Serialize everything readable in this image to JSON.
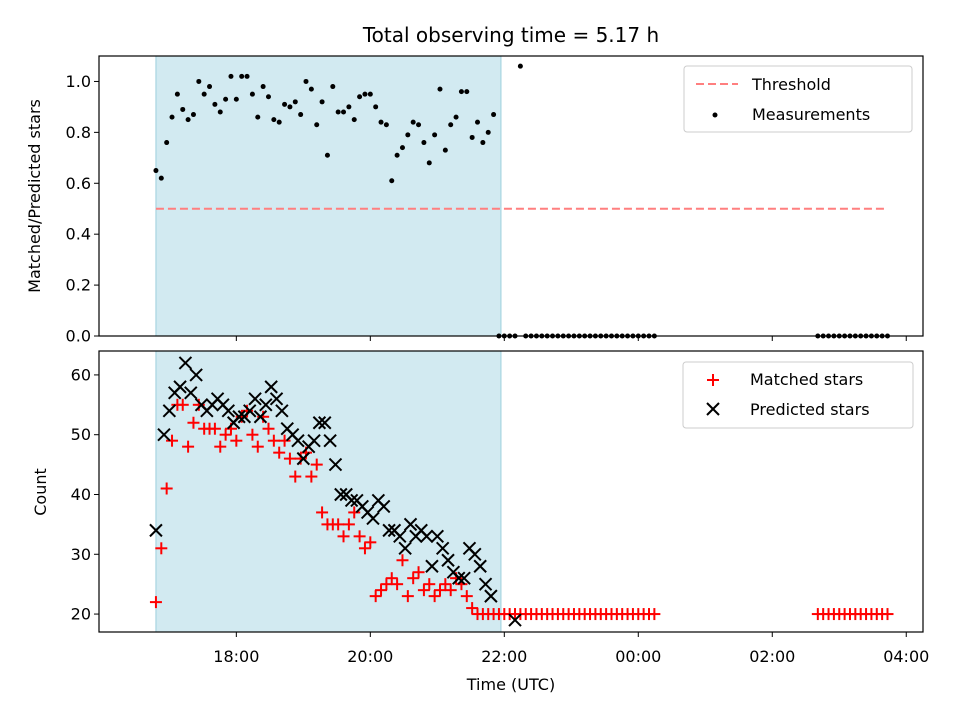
{
  "chart_data": [
    {
      "type": "scatter",
      "title": "Total observing time = 5.17 h",
      "xlabel": "",
      "ylabel": "Matched/Predicted stars",
      "x_unit": "hours after 00:00 UTC of observing start day",
      "xlim": [
        15.95,
        28.25
      ],
      "ylim": [
        0.0,
        1.1
      ],
      "yticks": [
        0.0,
        0.2,
        0.4,
        0.6,
        0.8,
        1.0
      ],
      "grid": false,
      "legend": "top-right",
      "highlight_span": [
        16.8,
        21.95
      ],
      "threshold": {
        "name": "Threshold",
        "value": 0.5,
        "x_range": [
          16.8,
          27.7
        ],
        "color": "#ff7f7f"
      },
      "series": [
        {
          "name": "Measurements",
          "color": "#000000",
          "x": [
            16.8,
            16.88,
            16.96,
            17.04,
            17.12,
            17.2,
            17.28,
            17.36,
            17.44,
            17.52,
            17.6,
            17.68,
            17.76,
            17.84,
            17.92,
            18.0,
            18.08,
            18.16,
            18.24,
            18.32,
            18.4,
            18.48,
            18.56,
            18.64,
            18.72,
            18.8,
            18.88,
            18.96,
            19.04,
            19.12,
            19.2,
            19.28,
            19.36,
            19.44,
            19.52,
            19.6,
            19.68,
            19.76,
            19.84,
            19.92,
            20.0,
            20.08,
            20.16,
            20.24,
            20.32,
            20.4,
            20.48,
            20.56,
            20.64,
            20.72,
            20.8,
            20.88,
            20.96,
            21.04,
            21.12,
            21.2,
            21.28,
            21.36,
            21.44,
            21.52,
            21.6,
            21.68,
            21.76,
            21.84,
            21.92,
            22.0,
            22.08,
            22.16,
            22.24,
            22.32,
            22.4,
            22.48,
            22.56,
            22.64,
            22.72,
            22.8,
            22.88,
            22.96,
            23.04,
            23.12,
            23.2,
            23.28,
            23.36,
            23.44,
            23.52,
            23.6,
            23.68,
            23.76,
            23.84,
            23.92,
            24.0,
            24.08,
            24.16,
            24.24,
            26.68,
            26.76,
            26.84,
            26.92,
            27.0,
            27.08,
            27.16,
            27.24,
            27.32,
            27.4,
            27.48,
            27.56,
            27.64,
            27.72
          ],
          "y": [
            0.65,
            0.62,
            0.76,
            0.86,
            0.95,
            0.89,
            0.85,
            0.87,
            1.0,
            0.95,
            0.98,
            0.91,
            0.88,
            0.93,
            1.02,
            0.93,
            1.02,
            1.02,
            0.95,
            0.86,
            0.98,
            0.94,
            0.85,
            0.84,
            0.91,
            0.9,
            0.92,
            0.87,
            1.0,
            0.97,
            0.83,
            0.92,
            0.71,
            0.98,
            0.88,
            0.88,
            0.9,
            0.85,
            0.94,
            0.95,
            0.95,
            0.9,
            0.84,
            0.83,
            0.61,
            0.71,
            0.74,
            0.79,
            0.84,
            0.83,
            0.76,
            0.68,
            0.79,
            0.97,
            0.73,
            0.83,
            0.86,
            0.96,
            0.96,
            0.78,
            0.84,
            0.76,
            0.8,
            0.87,
            0.0,
            0.0,
            0.0,
            0.0,
            1.06,
            0.0,
            0.0,
            0.0,
            0.0,
            0.0,
            0.0,
            0.0,
            0.0,
            0.0,
            0.0,
            0.0,
            0.0,
            0.0,
            0.0,
            0.0,
            0.0,
            0.0,
            0.0,
            0.0,
            0.0,
            0.0,
            0.0,
            0.0,
            0.0,
            0.0,
            0.0,
            0.0,
            0.0,
            0.0,
            0.0,
            0.0,
            0.0,
            0.0,
            0.0,
            0.0,
            0.0,
            0.0,
            0.0,
            0.0
          ]
        }
      ]
    },
    {
      "type": "scatter",
      "title": "",
      "xlabel": "Time (UTC)",
      "ylabel": "Count",
      "x_unit": "hours after 00:00 UTC of observing start day",
      "xlim": [
        15.95,
        28.25
      ],
      "ylim": [
        17,
        64
      ],
      "xticks": [
        18,
        20,
        22,
        24,
        26,
        28
      ],
      "xticklabels": [
        "18:00",
        "20:00",
        "22:00",
        "00:00",
        "02:00",
        "04:00"
      ],
      "yticks": [
        20,
        30,
        40,
        50,
        60
      ],
      "grid": false,
      "legend": "top-right",
      "highlight_span": [
        16.8,
        21.95
      ],
      "series": [
        {
          "name": "Matched stars",
          "marker": "plus",
          "color": "#ff0000",
          "x": [
            16.8,
            16.88,
            16.96,
            17.04,
            17.12,
            17.2,
            17.28,
            17.36,
            17.44,
            17.52,
            17.6,
            17.68,
            17.76,
            17.84,
            17.92,
            18.0,
            18.08,
            18.16,
            18.24,
            18.32,
            18.4,
            18.48,
            18.56,
            18.64,
            18.72,
            18.8,
            18.88,
            18.96,
            19.04,
            19.12,
            19.2,
            19.28,
            19.36,
            19.44,
            19.52,
            19.6,
            19.68,
            19.76,
            19.84,
            19.92,
            20.0,
            20.08,
            20.16,
            20.24,
            20.32,
            20.4,
            20.48,
            20.56,
            20.64,
            20.72,
            20.8,
            20.88,
            20.96,
            21.04,
            21.12,
            21.2,
            21.28,
            21.36,
            21.44,
            21.52,
            21.6,
            21.68,
            21.76,
            21.84,
            21.92,
            22.0,
            22.08,
            22.16,
            22.24,
            22.32,
            22.4,
            22.48,
            22.56,
            22.64,
            22.72,
            22.8,
            22.88,
            22.96,
            23.04,
            23.12,
            23.2,
            23.28,
            23.36,
            23.44,
            23.52,
            23.6,
            23.68,
            23.76,
            23.84,
            23.92,
            24.0,
            24.08,
            24.16,
            24.24,
            26.68,
            26.76,
            26.84,
            26.92,
            27.0,
            27.08,
            27.16,
            27.24,
            27.32,
            27.4,
            27.48,
            27.56,
            27.64,
            27.72
          ],
          "y": [
            22,
            31,
            41,
            49,
            55,
            55,
            48,
            52,
            55,
            51,
            51,
            51,
            48,
            50,
            51,
            49,
            53,
            54,
            50,
            48,
            53,
            51,
            49,
            47,
            49,
            46,
            43,
            46,
            47,
            43,
            45,
            37,
            35,
            35,
            35,
            33,
            35,
            37,
            33,
            31,
            32,
            23,
            24,
            25,
            26,
            25,
            29,
            23,
            26,
            27,
            24,
            25,
            23,
            24,
            25,
            24,
            26,
            25,
            23,
            21,
            20,
            20,
            20,
            20,
            20,
            20,
            20,
            20,
            20,
            20,
            20,
            20,
            20,
            20,
            20,
            20,
            20,
            20,
            20,
            20,
            20,
            20,
            20,
            20,
            20,
            20,
            20,
            20,
            20,
            20,
            20,
            20,
            20,
            20,
            20,
            20,
            20,
            20,
            20,
            20,
            20,
            20,
            20,
            20,
            20,
            20,
            20,
            20
          ]
        },
        {
          "name": "Predicted stars",
          "marker": "x",
          "color": "#000000",
          "x": [
            16.8,
            16.92,
            17.0,
            17.08,
            17.16,
            17.24,
            17.32,
            17.4,
            17.48,
            17.56,
            17.64,
            17.72,
            17.8,
            17.88,
            17.96,
            18.04,
            18.12,
            18.2,
            18.28,
            18.36,
            18.44,
            18.52,
            18.6,
            18.68,
            18.76,
            18.84,
            18.92,
            19.0,
            19.08,
            19.16,
            19.24,
            19.32,
            19.4,
            19.48,
            19.56,
            19.64,
            19.72,
            19.8,
            19.88,
            19.96,
            20.04,
            20.12,
            20.2,
            20.28,
            20.36,
            20.44,
            20.52,
            20.6,
            20.68,
            20.76,
            20.84,
            20.92,
            21.0,
            21.08,
            21.16,
            21.24,
            21.32,
            21.4,
            21.48,
            21.56,
            21.64,
            21.72,
            21.8,
            22.16
          ],
          "y": [
            34,
            50,
            54,
            57,
            58,
            62,
            57,
            60,
            55,
            54,
            55,
            56,
            55,
            54,
            52,
            53,
            53,
            54,
            56,
            53,
            55,
            58,
            56,
            54,
            51,
            50,
            49,
            46,
            48,
            49,
            52,
            52,
            49,
            45,
            40,
            40,
            39,
            39,
            38,
            37,
            36,
            39,
            38,
            34,
            34,
            33,
            31,
            35,
            33,
            34,
            33,
            28,
            33,
            31,
            29,
            27,
            26,
            26,
            31,
            30,
            28,
            25,
            23,
            19
          ]
        }
      ]
    }
  ]
}
